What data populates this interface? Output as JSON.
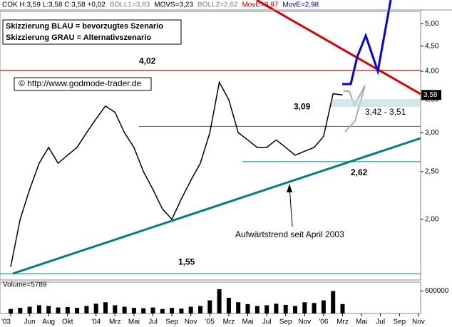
{
  "chart_data": {
    "type": "line",
    "header": [
      {
        "text": "COK H:3,59 L:3,58 C:3,58 +0,02",
        "color": "#000000"
      },
      {
        "text": "BOLL1=3,83",
        "color": "#808080"
      },
      {
        "text": "MOVS=3,23",
        "color": "#000000"
      },
      {
        "text": "BOLL2=2,62",
        "color": "#808080"
      },
      {
        "text": "MovE=3,97",
        "color": "#cc0000"
      },
      {
        "text": "MovE=2,98",
        "color": "#0000cc"
      }
    ],
    "notes": [
      "Skizzierung BLAU = bevorzugtes Szenario",
      "Skizzierung GRAU = Alternativszenario"
    ],
    "source": "© http://www.godmode-trader.de",
    "trend_label": "Aufwärtstrend seit April 2003",
    "zone_label": "3,42 - 3,51",
    "last_price": {
      "value": 3.58,
      "label": "3,58"
    },
    "levels": [
      {
        "value": 4.02,
        "label": "4,02",
        "color": "#cc0000"
      },
      {
        "value": 3.09,
        "label": "3,09",
        "color": "#008080"
      },
      {
        "value": 2.62,
        "label": "2,62",
        "color": "#008080"
      },
      {
        "value": 1.55,
        "label": "1,55",
        "color": "#008080"
      }
    ],
    "categories": [
      "'03",
      null,
      "Jun",
      null,
      "Aug",
      null,
      "Okt",
      null,
      null,
      "'04",
      null,
      "Mrz",
      null,
      "Mai",
      null,
      "Jul",
      null,
      "Sep",
      null,
      "Nov",
      null,
      "'05",
      null,
      "Mrz",
      null,
      "Mai",
      null,
      "Jul",
      null,
      "Sep",
      null,
      "Nov",
      null,
      "'06",
      null,
      "Mrz",
      null,
      "Mai",
      null,
      "Jul",
      null,
      "Sep",
      null,
      "Nov"
    ],
    "series": [
      {
        "name": "COK",
        "color": "#000000",
        "values": [
          1.6,
          2.0,
          2.3,
          2.6,
          2.8,
          2.6,
          2.7,
          2.8,
          3.0,
          3.2,
          3.4,
          3.3,
          3.0,
          2.8,
          2.5,
          2.3,
          2.1,
          2.0,
          2.2,
          2.4,
          2.6,
          3.0,
          3.8,
          3.5,
          3.0,
          2.9,
          2.8,
          2.8,
          2.9,
          2.8,
          2.7,
          2.75,
          2.8,
          2.95,
          3.6,
          3.58,
          null,
          null,
          null,
          null,
          null,
          null,
          null,
          null
        ]
      }
    ],
    "ylim": [
      1.51,
      5.26
    ],
    "log_scale": true,
    "yticks": [
      {
        "value": 2,
        "label": "2,00"
      },
      {
        "value": 2.5,
        "label": "2,50"
      },
      {
        "value": 3,
        "label": "3,00"
      },
      {
        "value": 3.5,
        "label": "3,50"
      },
      {
        "value": 4,
        "label": "4,00"
      },
      {
        "value": 4.5,
        "label": "4,50"
      },
      {
        "value": 5,
        "label": "5,00"
      }
    ],
    "volume": {
      "label": "Volume=5789",
      "color": "#000000",
      "values": [
        120000,
        150000,
        180000,
        220000,
        200000,
        160000,
        170000,
        150000,
        200000,
        260000,
        300000,
        220000,
        180000,
        150000,
        140000,
        160000,
        120000,
        150000,
        130000,
        180000,
        200000,
        350000,
        650000,
        420000,
        300000,
        250000,
        200000,
        220000,
        260000,
        230000,
        200000,
        300000,
        280000,
        350000,
        600000,
        250000,
        null,
        null,
        null,
        null,
        null,
        null,
        null,
        null
      ],
      "ylim": [
        0,
        800000
      ],
      "yticks": [
        600000
      ]
    }
  }
}
